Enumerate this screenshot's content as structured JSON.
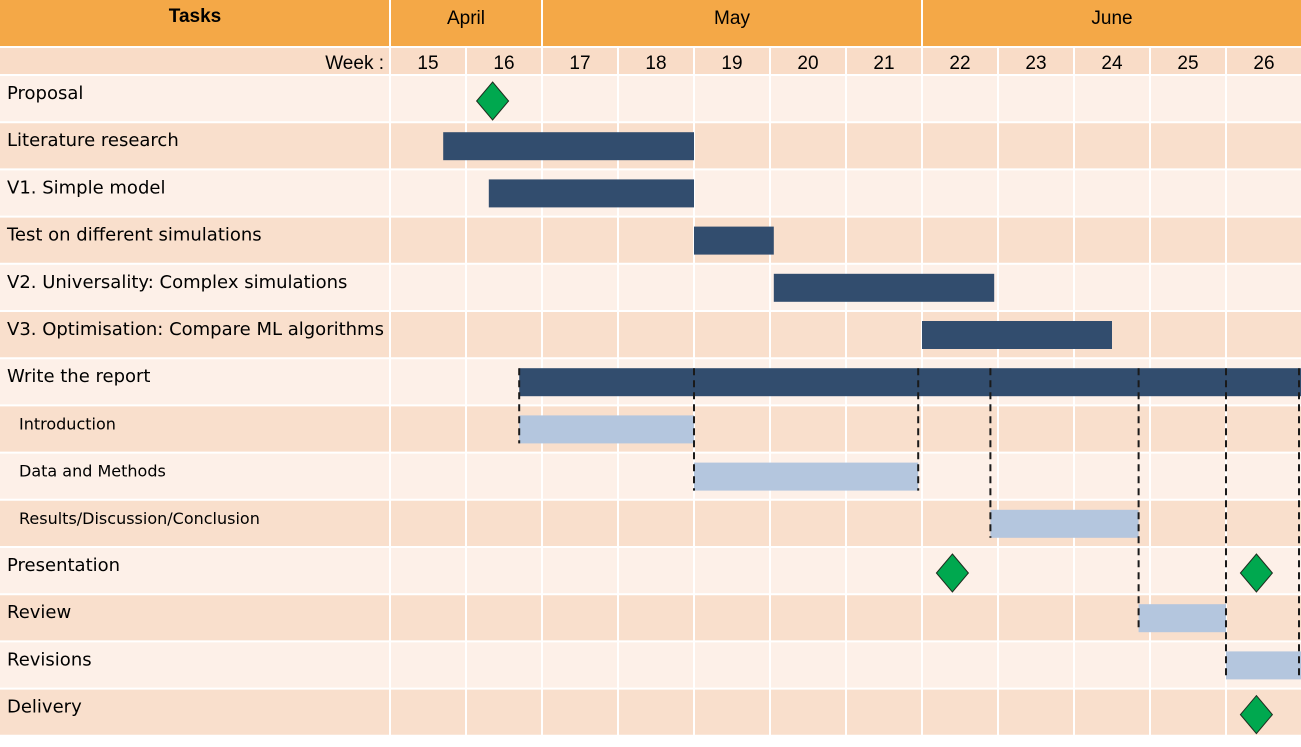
{
  "chart_data": {
    "type": "gantt",
    "header": {
      "tasks_label": "Tasks",
      "week_label": "Week :",
      "months": [
        {
          "label": "April",
          "weeks": [
            15,
            16
          ]
        },
        {
          "label": "May",
          "weeks": [
            17,
            21
          ]
        },
        {
          "label": "June",
          "weeks": [
            22,
            26
          ]
        }
      ]
    },
    "weeks": [
      "15",
      "16",
      "17",
      "18",
      "19",
      "20",
      "21",
      "22",
      "23",
      "24",
      "25",
      "26"
    ],
    "colors": {
      "header_bg": "#F4A847",
      "week_row_bg": "#F9DCC7",
      "row_light": "#FDF0E8",
      "row_dark": "#F9DFCC",
      "bar_dark": "#324D6E",
      "bar_light": "#B4C6DE",
      "milestone": "#00A84F"
    },
    "tasks": [
      {
        "label": "Proposal",
        "level": 0,
        "milestones": [
          16.35
        ]
      },
      {
        "label": "Literature research",
        "level": 0,
        "bars": [
          {
            "start": 15.7,
            "end": 19.0,
            "style": "dark"
          }
        ]
      },
      {
        "label": "V1. Simple model",
        "level": 0,
        "bars": [
          {
            "start": 16.3,
            "end": 19.0,
            "style": "dark"
          }
        ]
      },
      {
        "label": "Test on different simulations",
        "level": 0,
        "bars": [
          {
            "start": 19.0,
            "end": 20.05,
            "style": "dark"
          }
        ]
      },
      {
        "label": "V2. Universality: Complex simulations",
        "level": 0,
        "bars": [
          {
            "start": 20.05,
            "end": 22.95,
            "style": "dark"
          }
        ]
      },
      {
        "label": "V3. Optimisation: Compare ML algorithms",
        "level": 0,
        "bars": [
          {
            "start": 22.0,
            "end": 24.5,
            "style": "dark"
          }
        ]
      },
      {
        "label": "Write the report",
        "level": 0,
        "bars": [
          {
            "start": 16.7,
            "end": 27.0,
            "style": "dark"
          }
        ]
      },
      {
        "label": "Introduction",
        "level": 1,
        "bars": [
          {
            "start": 16.7,
            "end": 19.0,
            "style": "light"
          }
        ]
      },
      {
        "label": "Data and Methods",
        "level": 1,
        "bars": [
          {
            "start": 19.0,
            "end": 21.95,
            "style": "light"
          }
        ]
      },
      {
        "label": "Results/Discussion/Conclusion",
        "level": 1,
        "bars": [
          {
            "start": 22.9,
            "end": 24.85,
            "style": "light"
          }
        ]
      },
      {
        "label": "Presentation",
        "level": 0,
        "milestones": [
          22.4,
          26.4
        ]
      },
      {
        "label": "Review",
        "level": 0,
        "bars": [
          {
            "start": 24.85,
            "end": 26.0,
            "style": "light"
          }
        ]
      },
      {
        "label": "Revisions",
        "level": 0,
        "bars": [
          {
            "start": 26.0,
            "end": 27.0,
            "style": "light"
          }
        ]
      },
      {
        "label": "Delivery",
        "level": 0,
        "milestones": [
          26.4
        ]
      }
    ],
    "dashed_links": [
      {
        "week": 16.7,
        "from_row": 6,
        "to_row": 7
      },
      {
        "week": 19.0,
        "from_row": 6,
        "to_row": 8
      },
      {
        "week": 21.95,
        "from_row": 6,
        "to_row": 8
      },
      {
        "week": 22.9,
        "from_row": 6,
        "to_row": 9
      },
      {
        "week": 24.85,
        "from_row": 6,
        "to_row": 11
      },
      {
        "week": 26.0,
        "from_row": 6,
        "to_row": 12
      },
      {
        "week": 27.0,
        "from_row": 6,
        "to_row": 12
      }
    ]
  }
}
